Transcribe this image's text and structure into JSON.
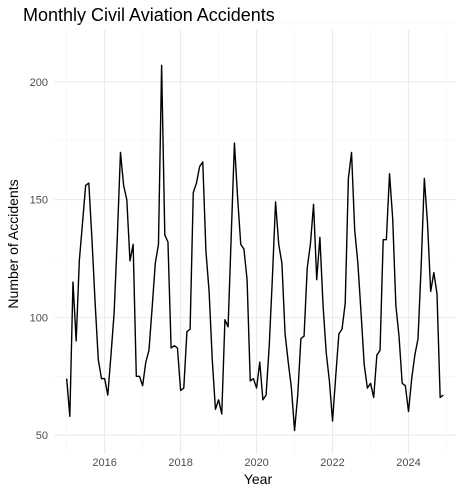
{
  "chart_data": {
    "type": "line",
    "title": "Monthly Civil Aviation Accidents",
    "xlabel": "Year",
    "ylabel": "Number of Accidents",
    "x_tick_labels": [
      "2016",
      "2018",
      "2020",
      "2022",
      "2024"
    ],
    "y_tick_labels": [
      "50",
      "100",
      "150",
      "200"
    ],
    "xlim": [
      "2014-09",
      "2025-04"
    ],
    "ylim": [
      42,
      222
    ],
    "grid": true,
    "legend": "none",
    "line_color": "#000000",
    "series": [
      {
        "x": [
          "2015-01",
          "2015-02",
          "2015-03",
          "2015-04",
          "2015-05",
          "2015-06",
          "2015-07",
          "2015-08",
          "2015-09",
          "2015-10",
          "2015-11",
          "2015-12",
          "2016-01",
          "2016-02",
          "2016-03",
          "2016-04",
          "2016-05",
          "2016-06",
          "2016-07",
          "2016-08",
          "2016-09",
          "2016-10",
          "2016-11",
          "2016-12",
          "2017-01",
          "2017-02",
          "2017-03",
          "2017-04",
          "2017-05",
          "2017-06",
          "2017-07",
          "2017-08",
          "2017-09",
          "2017-10",
          "2017-11",
          "2017-12",
          "2018-01",
          "2018-02",
          "2018-03",
          "2018-04",
          "2018-05",
          "2018-06",
          "2018-07",
          "2018-08",
          "2018-09",
          "2018-10",
          "2018-11",
          "2018-12",
          "2019-01",
          "2019-02",
          "2019-03",
          "2019-04",
          "2019-05",
          "2019-06",
          "2019-07",
          "2019-08",
          "2019-09",
          "2019-10",
          "2019-11",
          "2019-12",
          "2020-01",
          "2020-02",
          "2020-03",
          "2020-04",
          "2020-05",
          "2020-06",
          "2020-07",
          "2020-08",
          "2020-09",
          "2020-10",
          "2020-11",
          "2020-12",
          "2021-01",
          "2021-02",
          "2021-03",
          "2021-04",
          "2021-05",
          "2021-06",
          "2021-07",
          "2021-08",
          "2021-09",
          "2021-10",
          "2021-11",
          "2021-12",
          "2022-01",
          "2022-02",
          "2022-03",
          "2022-04",
          "2022-05",
          "2022-06",
          "2022-07",
          "2022-08",
          "2022-09",
          "2022-10",
          "2022-11",
          "2022-12",
          "2023-01",
          "2023-02",
          "2023-03",
          "2023-04",
          "2023-05",
          "2023-06",
          "2023-07",
          "2023-08",
          "2023-09",
          "2023-10",
          "2023-11",
          "2023-12",
          "2024-01",
          "2024-02",
          "2024-03",
          "2024-04",
          "2024-05",
          "2024-06",
          "2024-07",
          "2024-08",
          "2024-09",
          "2024-10",
          "2024-11",
          "2024-12"
        ],
        "values": [
          74,
          58,
          115,
          90,
          124,
          140,
          156,
          157,
          133,
          106,
          82,
          74,
          74,
          67,
          84,
          102,
          134,
          170,
          156,
          150,
          124,
          131,
          75,
          75,
          71,
          81,
          86,
          104,
          123,
          131,
          207,
          135,
          132,
          87,
          88,
          87,
          69,
          70,
          94,
          95,
          153,
          157,
          164,
          166,
          128,
          111,
          82,
          61,
          65,
          59,
          99,
          96,
          135,
          174,
          151,
          131,
          129,
          116,
          73,
          74,
          70,
          81,
          65,
          67,
          88,
          117,
          149,
          131,
          123,
          93,
          81,
          70,
          52,
          67,
          91,
          92,
          121,
          131,
          148,
          116,
          134,
          105,
          85,
          73,
          56,
          75,
          93,
          95,
          106,
          159,
          170,
          137,
          123,
          102,
          80,
          70,
          72,
          66,
          84,
          86,
          133,
          133,
          161,
          142,
          105,
          92,
          72,
          71,
          60,
          74,
          84,
          91,
          122,
          159,
          140,
          111,
          119,
          110,
          66,
          67
        ]
      }
    ]
  }
}
